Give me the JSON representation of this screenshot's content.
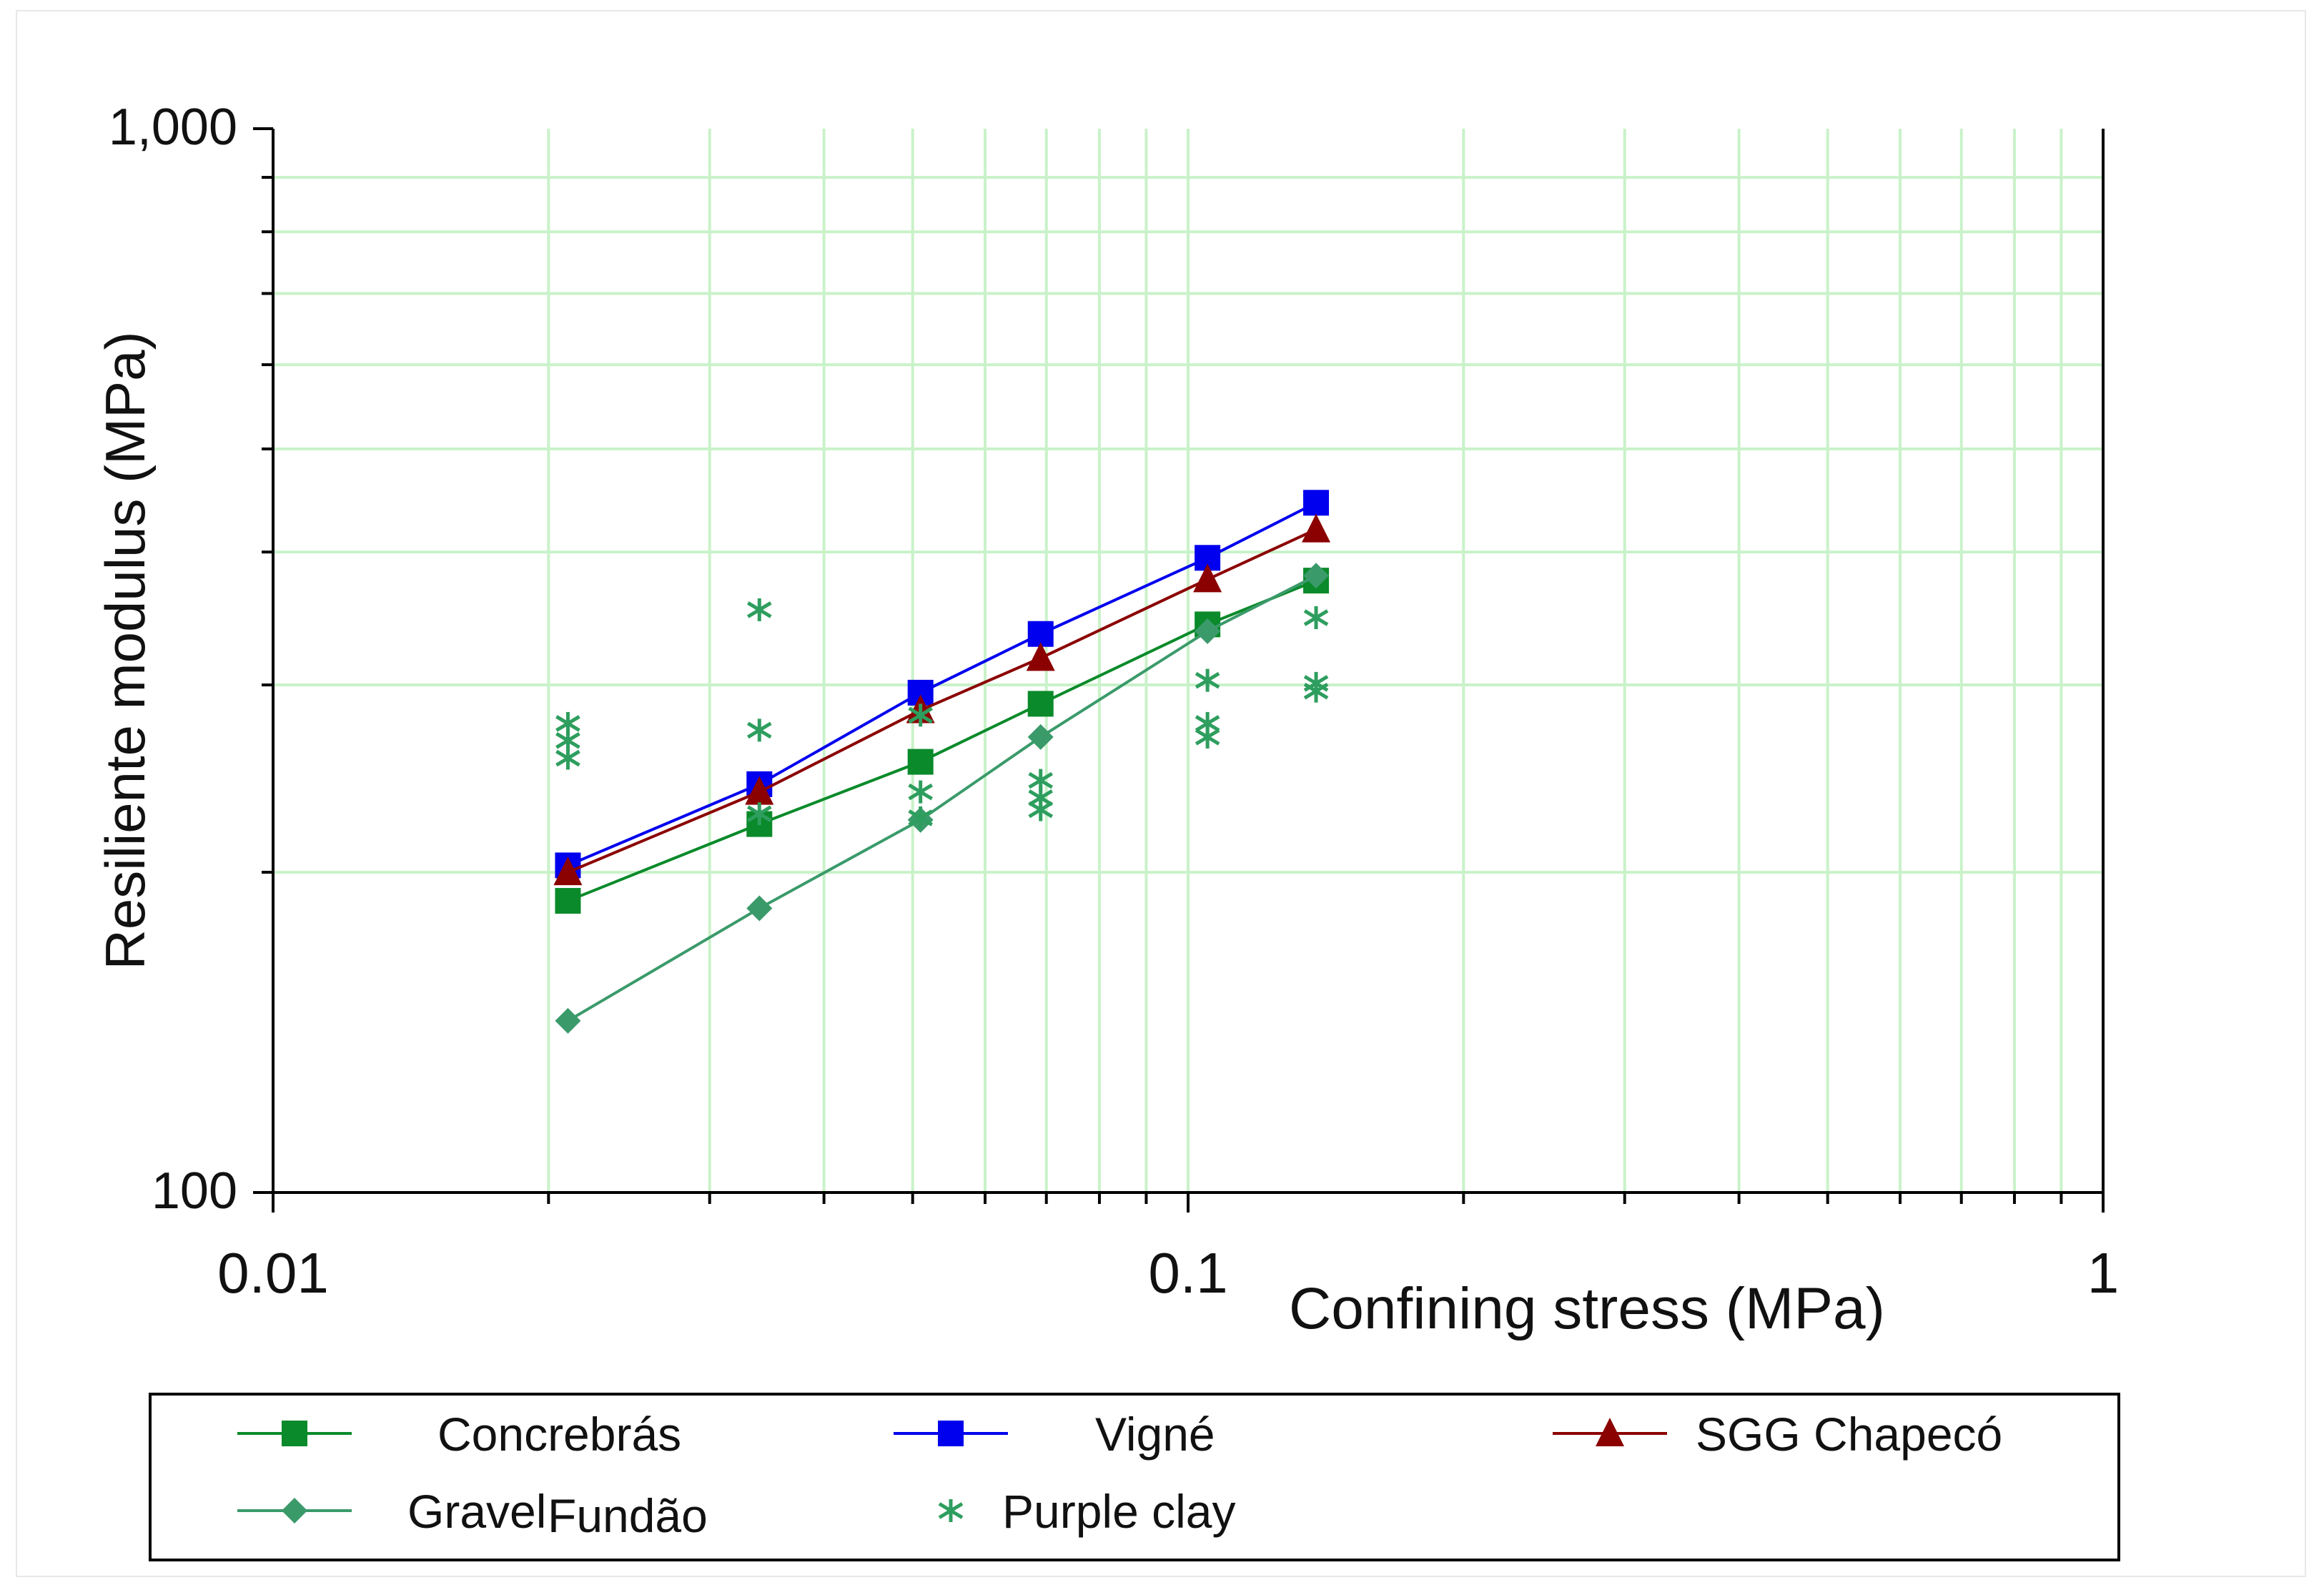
{
  "chart_data": {
    "type": "line",
    "title": "",
    "xlabel": "Confining stress (MPa)",
    "ylabel": "Resiliente modulus (MPa)",
    "xscale": "log",
    "yscale": "log",
    "xlim": [
      0.01,
      1
    ],
    "ylim": [
      100,
      1000
    ],
    "x_ticks": [
      {
        "value": 0.01,
        "label": "0.01"
      },
      {
        "value": 0.1,
        "label": "0.1"
      },
      {
        "value": 1,
        "label": "1"
      }
    ],
    "y_ticks": [
      {
        "value": 100,
        "label": "100"
      },
      {
        "value": 1000,
        "label": "1,000"
      }
    ],
    "grid": true,
    "legend_position": "bottom",
    "series": [
      {
        "name": "Concrebrás",
        "color": "#0a8a2a",
        "marker": "square",
        "line": true,
        "x": [
          0.021,
          0.034,
          0.051,
          0.069,
          0.105,
          0.138
        ],
        "y": [
          188,
          222,
          254,
          288,
          342,
          376
        ]
      },
      {
        "name": "Vigné",
        "color": "#0000ee",
        "marker": "square",
        "line": true,
        "x": [
          0.021,
          0.034,
          0.051,
          0.069,
          0.105,
          0.138
        ],
        "y": [
          203,
          242,
          295,
          335,
          395,
          445
        ]
      },
      {
        "name": "SGG Chapecó",
        "color": "#8b0000",
        "marker": "triangle",
        "line": true,
        "x": [
          0.021,
          0.034,
          0.051,
          0.069,
          0.105,
          0.138
        ],
        "y": [
          200,
          238,
          284,
          318,
          377,
          420
        ]
      },
      {
        "name": "Gravel",
        "name_suffix": "Fundão",
        "color": "#3a9a6a",
        "marker": "diamond",
        "line": true,
        "x": [
          0.021,
          0.034,
          0.051,
          0.069,
          0.105,
          0.138
        ],
        "y": [
          145,
          185,
          224,
          268,
          337,
          380
        ]
      },
      {
        "name": "Purple clay",
        "color": "#2e9e5e",
        "marker": "asterisk",
        "line": false,
        "x": [
          0.021,
          0.021,
          0.021,
          0.034,
          0.034,
          0.034,
          0.051,
          0.051,
          0.051,
          0.069,
          0.069,
          0.069,
          0.105,
          0.105,
          0.105,
          0.138,
          0.138,
          0.138
        ],
        "y": [
          276,
          266,
          256,
          353,
          272,
          227,
          281,
          238,
          225,
          244,
          235,
          229,
          303,
          276,
          268,
          347,
          301,
          296
        ]
      }
    ]
  }
}
